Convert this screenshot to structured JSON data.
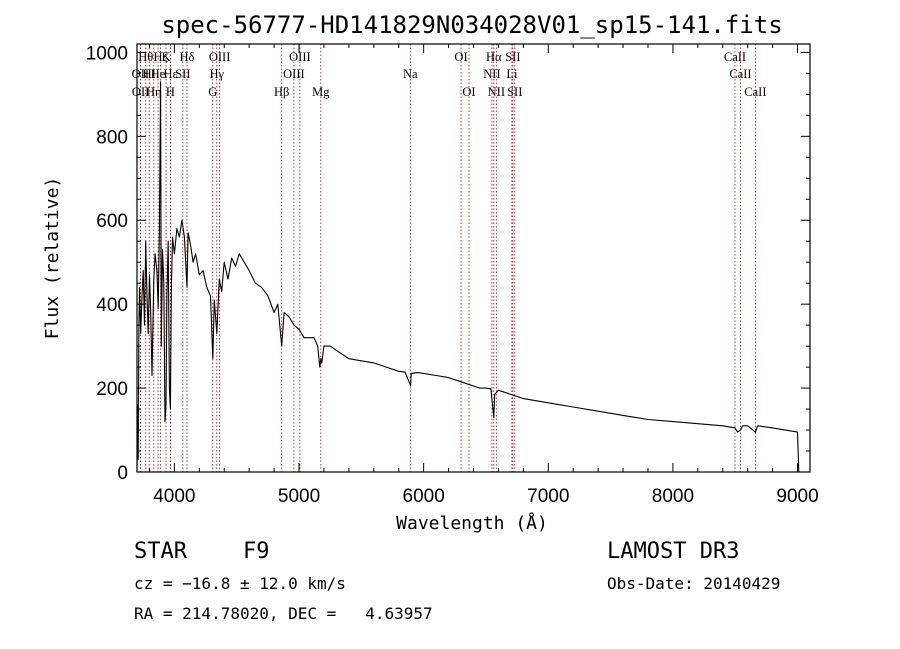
{
  "chart_data": {
    "type": "line",
    "title": "spec-56777-HD141829N034028V01_sp15-141.fits",
    "xlabel": "Wavelength (Å)",
    "ylabel": "Flux (relative)",
    "xlim": [
      3700,
      9100
    ],
    "ylim": [
      0,
      1020
    ],
    "x_ticks": [
      4000,
      5000,
      6000,
      7000,
      8000,
      9000
    ],
    "y_ticks": [
      0,
      200,
      400,
      600,
      800,
      1000
    ],
    "series": [
      {
        "name": "flux",
        "x": [
          3700,
          3705,
          3710,
          3715,
          3720,
          3725,
          3730,
          3740,
          3750,
          3760,
          3770,
          3780,
          3790,
          3800,
          3810,
          3820,
          3835,
          3845,
          3860,
          3870,
          3880,
          3889,
          3895,
          3905,
          3915,
          3925,
          3933,
          3940,
          3950,
          3960,
          3968,
          3975,
          3985,
          4000,
          4020,
          4040,
          4060,
          4080,
          4101,
          4110,
          4130,
          4150,
          4170,
          4200,
          4230,
          4260,
          4290,
          4308,
          4320,
          4340,
          4360,
          4380,
          4400,
          4430,
          4460,
          4490,
          4520,
          4560,
          4600,
          4650,
          4700,
          4750,
          4800,
          4830,
          4861,
          4880,
          4920,
          4960,
          5000,
          5040,
          5080,
          5120,
          5150,
          5167,
          5175,
          5183,
          5200,
          5250,
          5300,
          5350,
          5400,
          5500,
          5600,
          5700,
          5800,
          5850,
          5890,
          5895,
          5900,
          5950,
          6000,
          6100,
          6200,
          6300,
          6400,
          6450,
          6500,
          6540,
          6563,
          6570,
          6600,
          6700,
          6800,
          7000,
          7200,
          7400,
          7600,
          7800,
          8000,
          8200,
          8400,
          8498,
          8520,
          8542,
          8560,
          8600,
          8662,
          8680,
          8800,
          9000,
          9010
        ],
        "values": [
          0,
          160,
          30,
          340,
          440,
          390,
          330,
          420,
          480,
          350,
          550,
          420,
          330,
          470,
          380,
          230,
          460,
          520,
          480,
          390,
          580,
          930,
          300,
          530,
          450,
          120,
          160,
          420,
          550,
          200,
          150,
          430,
          560,
          520,
          580,
          560,
          600,
          560,
          440,
          570,
          540,
          500,
          520,
          470,
          480,
          440,
          420,
          270,
          410,
          330,
          460,
          430,
          500,
          460,
          510,
          490,
          520,
          500,
          480,
          450,
          440,
          420,
          380,
          400,
          300,
          380,
          370,
          350,
          340,
          320,
          320,
          320,
          300,
          250,
          270,
          260,
          300,
          300,
          290,
          280,
          270,
          265,
          260,
          250,
          240,
          238,
          210,
          205,
          235,
          237,
          235,
          230,
          225,
          215,
          205,
          200,
          200,
          198,
          130,
          185,
          195,
          185,
          175,
          165,
          155,
          145,
          135,
          125,
          120,
          115,
          110,
          105,
          95,
          100,
          110,
          110,
          95,
          110,
          105,
          95,
          0
        ]
      }
    ],
    "spectral_lines": [
      {
        "wl": 3727,
        "row": 2,
        "label": "OII"
      },
      {
        "wl": 3729,
        "row": 3,
        "label": "OII"
      },
      {
        "wl": 3770,
        "row": 1,
        "label": "Hθ"
      },
      {
        "wl": 3798,
        "row": 2,
        "label": "HI"
      },
      {
        "wl": 3835,
        "row": 3,
        "label": "Hη"
      },
      {
        "wl": 3869,
        "row": 2,
        "label": "He"
      },
      {
        "wl": 3889,
        "row": 1,
        "label": "Hζ"
      },
      {
        "wl": 3933,
        "row": 1,
        "label": "K"
      },
      {
        "wl": 3968,
        "row": 3,
        "label": "H"
      },
      {
        "wl": 3970,
        "row": 2,
        "label": "Hε"
      },
      {
        "wl": 4068,
        "row": 2,
        "label": "SII"
      },
      {
        "wl": 4101,
        "row": 1,
        "label": "Hδ"
      },
      {
        "wl": 4308,
        "row": 3,
        "label": "G"
      },
      {
        "wl": 4340,
        "row": 2,
        "label": "Hγ"
      },
      {
        "wl": 4363,
        "row": 1,
        "label": "OIII"
      },
      {
        "wl": 4861,
        "row": 3,
        "label": "Hβ"
      },
      {
        "wl": 4959,
        "row": 2,
        "label": "OIII"
      },
      {
        "wl": 5007,
        "row": 1,
        "label": "OIII"
      },
      {
        "wl": 5175,
        "row": 3,
        "label": "Mg"
      },
      {
        "wl": 5893,
        "row": 2,
        "label": "Na"
      },
      {
        "wl": 6300,
        "row": 1,
        "label": "OI"
      },
      {
        "wl": 6364,
        "row": 3,
        "label": "OI"
      },
      {
        "wl": 6548,
        "row": 2,
        "label": "NII"
      },
      {
        "wl": 6563,
        "row": 1,
        "label": "Hα"
      },
      {
        "wl": 6583,
        "row": 3,
        "label": "NII"
      },
      {
        "wl": 6708,
        "row": 2,
        "label": "Li"
      },
      {
        "wl": 6716,
        "row": 1,
        "label": "SII"
      },
      {
        "wl": 6731,
        "row": 3,
        "label": "SII"
      },
      {
        "wl": 8498,
        "row": 1,
        "label": "CaII"
      },
      {
        "wl": 8542,
        "row": 2,
        "label": "CaII"
      },
      {
        "wl": 8662,
        "row": 3,
        "label": "CaII"
      }
    ]
  },
  "info": {
    "class_label": "STAR",
    "subclass": "F9",
    "survey": "LAMOST DR3",
    "cz": "cz = −16.8 ± 12.0 km/s",
    "obs_date": "Obs-Date: 20140429",
    "coords": "RA = 214.78020, DEC =   4.63957"
  },
  "colors": {
    "line_marker": "#c00000",
    "spectrum": "#000000"
  }
}
